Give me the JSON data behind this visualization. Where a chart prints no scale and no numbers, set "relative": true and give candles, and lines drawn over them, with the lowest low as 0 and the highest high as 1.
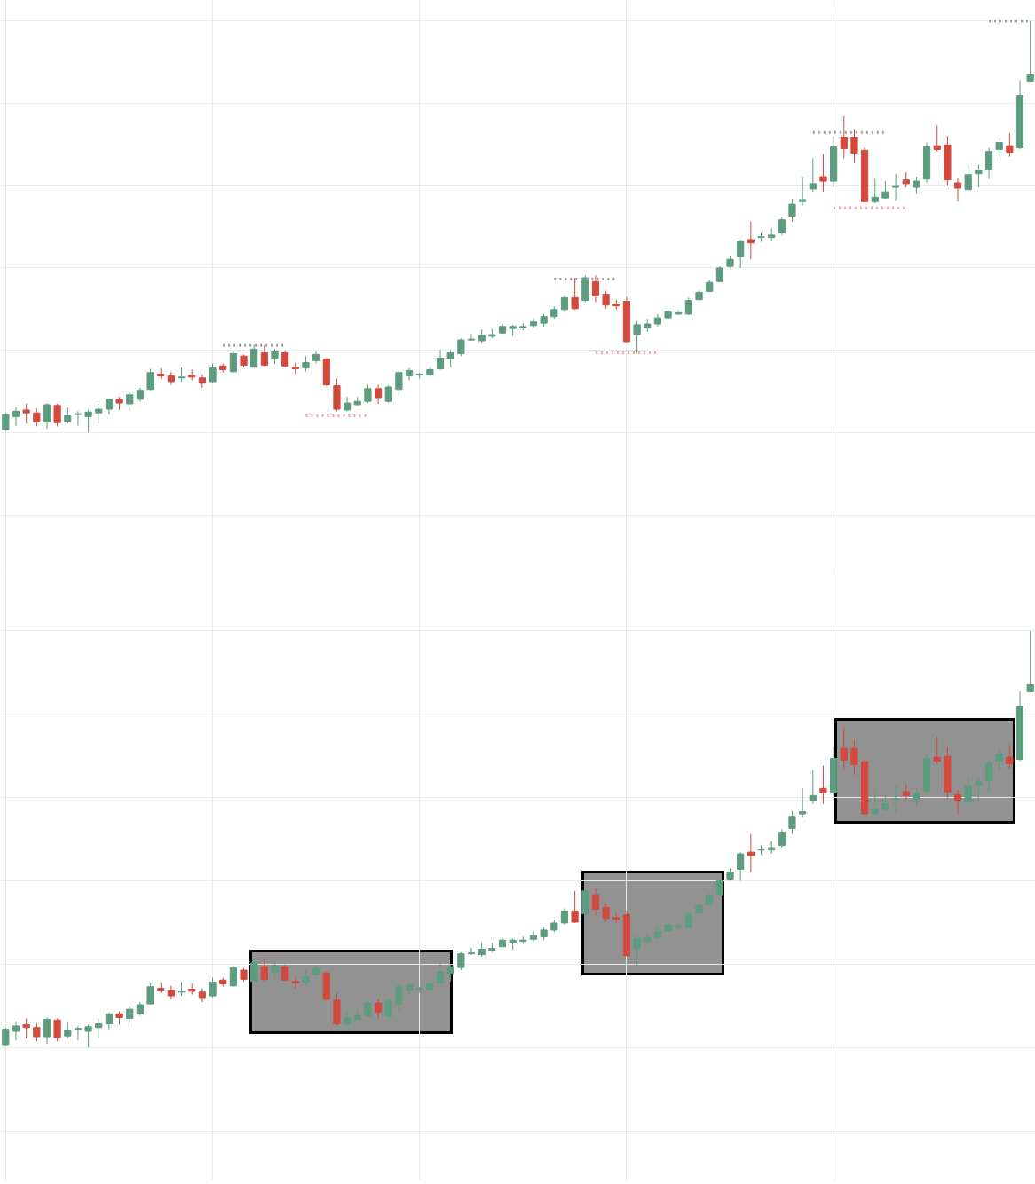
{
  "chart_data": [
    {
      "type": "candlestick",
      "relative": true,
      "grid": true,
      "line_style": "dotted",
      "categories": [
        null,
        null,
        null,
        null,
        null,
        null,
        null,
        null,
        null,
        null,
        null,
        null,
        null,
        null,
        null,
        null,
        null,
        null,
        null,
        null,
        null,
        null,
        null,
        null,
        null,
        null,
        null,
        null,
        null,
        null,
        null,
        null,
        null,
        null,
        null,
        null,
        null,
        null,
        null,
        null,
        null,
        null,
        null,
        null,
        null,
        null,
        null,
        null,
        null,
        null,
        null,
        null,
        null,
        null,
        null,
        null,
        null,
        null,
        null,
        null,
        null,
        null,
        null,
        null,
        null,
        null,
        null,
        null,
        null,
        null,
        null,
        null,
        null,
        null,
        null,
        null,
        null,
        null,
        null,
        null,
        null,
        null,
        null,
        null,
        null,
        null,
        null,
        null,
        null,
        null,
        null,
        null,
        null,
        null,
        null,
        null,
        null,
        null,
        null,
        null
      ],
      "ohlc": [
        [
          0.007,
          0.048,
          0.004,
          0.044
        ],
        [
          0.039,
          0.063,
          0.017,
          0.052
        ],
        [
          0.055,
          0.07,
          0.022,
          0.048
        ],
        [
          0.048,
          0.059,
          0.015,
          0.026
        ],
        [
          0.026,
          0.072,
          0.009,
          0.068
        ],
        [
          0.066,
          0.07,
          0.015,
          0.024
        ],
        [
          0.028,
          0.061,
          0.022,
          0.041
        ],
        [
          0.044,
          0.052,
          0.017,
          0.046
        ],
        [
          0.039,
          0.055,
          0.0,
          0.05
        ],
        [
          0.048,
          0.07,
          0.022,
          0.057
        ],
        [
          0.057,
          0.083,
          0.044,
          0.081
        ],
        [
          0.081,
          0.087,
          0.055,
          0.072
        ],
        [
          0.07,
          0.098,
          0.055,
          0.092
        ],
        [
          0.081,
          0.109,
          0.076,
          0.103
        ],
        [
          0.105,
          0.155,
          0.103,
          0.146
        ],
        [
          0.142,
          0.157,
          0.131,
          0.138
        ],
        [
          0.138,
          0.148,
          0.116,
          0.124
        ],
        [
          0.133,
          0.157,
          0.124,
          0.135
        ],
        [
          0.14,
          0.153,
          0.127,
          0.135
        ],
        [
          0.133,
          0.142,
          0.109,
          0.12
        ],
        [
          0.124,
          0.168,
          0.12,
          0.157
        ],
        [
          0.162,
          0.168,
          0.146,
          0.153
        ],
        [
          0.148,
          0.197,
          0.146,
          0.192
        ],
        [
          0.186,
          0.19,
          0.159,
          0.164
        ],
        [
          0.159,
          0.214,
          0.159,
          0.203
        ],
        [
          0.194,
          0.212,
          0.159,
          0.164
        ],
        [
          0.181,
          0.203,
          0.168,
          0.197
        ],
        [
          0.194,
          0.199,
          0.159,
          0.162
        ],
        [
          0.159,
          0.17,
          0.142,
          0.155
        ],
        [
          0.157,
          0.186,
          0.148,
          0.17
        ],
        [
          0.175,
          0.197,
          0.168,
          0.19
        ],
        [
          0.179,
          0.181,
          0.114,
          0.116
        ],
        [
          0.114,
          0.131,
          0.052,
          0.057
        ],
        [
          0.055,
          0.087,
          0.052,
          0.072
        ],
        [
          0.068,
          0.087,
          0.066,
          0.076
        ],
        [
          0.076,
          0.116,
          0.072,
          0.107
        ],
        [
          0.107,
          0.116,
          0.07,
          0.085
        ],
        [
          0.076,
          0.116,
          0.072,
          0.111
        ],
        [
          0.105,
          0.153,
          0.087,
          0.146
        ],
        [
          0.138,
          0.157,
          0.127,
          0.151
        ],
        [
          0.14,
          0.146,
          0.131,
          0.142
        ],
        [
          0.14,
          0.157,
          0.138,
          0.153
        ],
        [
          0.155,
          0.201,
          0.153,
          0.181
        ],
        [
          0.179,
          0.201,
          0.159,
          0.194
        ],
        [
          0.192,
          0.229,
          0.186,
          0.225
        ],
        [
          0.225,
          0.24,
          0.223,
          0.227
        ],
        [
          0.223,
          0.251,
          0.218,
          0.236
        ],
        [
          0.234,
          0.251,
          0.229,
          0.238
        ],
        [
          0.242,
          0.264,
          0.24,
          0.258
        ],
        [
          0.253,
          0.262,
          0.234,
          0.258
        ],
        [
          0.255,
          0.266,
          0.249,
          0.258
        ],
        [
          0.26,
          0.279,
          0.255,
          0.269
        ],
        [
          0.266,
          0.288,
          0.258,
          0.282
        ],
        [
          0.282,
          0.306,
          0.277,
          0.299
        ],
        [
          0.299,
          0.334,
          0.295,
          0.328
        ],
        [
          0.328,
          0.376,
          0.299,
          0.301
        ],
        [
          0.321,
          0.382,
          0.317,
          0.376
        ],
        [
          0.367,
          0.382,
          0.317,
          0.332
        ],
        [
          0.336,
          0.345,
          0.301,
          0.31
        ],
        [
          0.312,
          0.323,
          0.299,
          0.308
        ],
        [
          0.319,
          0.33,
          0.218,
          0.221
        ],
        [
          0.238,
          0.271,
          0.192,
          0.262
        ],
        [
          0.255,
          0.277,
          0.245,
          0.264
        ],
        [
          0.264,
          0.288,
          0.258,
          0.279
        ],
        [
          0.279,
          0.299,
          0.277,
          0.295
        ],
        [
          0.288,
          0.297,
          0.286,
          0.293
        ],
        [
          0.288,
          0.328,
          0.286,
          0.321
        ],
        [
          0.323,
          0.345,
          0.321,
          0.341
        ],
        [
          0.343,
          0.371,
          0.341,
          0.365
        ],
        [
          0.367,
          0.404,
          0.365,
          0.4
        ],
        [
          0.404,
          0.43,
          0.4,
          0.421
        ],
        [
          0.428,
          0.469,
          0.4,
          0.465
        ],
        [
          0.469,
          0.513,
          0.421,
          0.461
        ],
        [
          0.474,
          0.487,
          0.463,
          0.476
        ],
        [
          0.474,
          0.496,
          0.465,
          0.48
        ],
        [
          0.485,
          0.524,
          0.48,
          0.517
        ],
        [
          0.526,
          0.568,
          0.513,
          0.555
        ],
        [
          0.561,
          0.622,
          0.552,
          0.566
        ],
        [
          0.592,
          0.666,
          0.585,
          0.605
        ],
        [
          0.622,
          0.677,
          0.585,
          0.611
        ],
        [
          0.611,
          0.721,
          0.596,
          0.694
        ],
        [
          0.718,
          0.769,
          0.666,
          0.69
        ],
        [
          0.718,
          0.738,
          0.655,
          0.679
        ],
        [
          0.686,
          0.692,
          0.559,
          0.561
        ],
        [
          0.561,
          0.618,
          0.557,
          0.572
        ],
        [
          0.57,
          0.611,
          0.568,
          0.585
        ],
        [
          0.596,
          0.629,
          0.563,
          0.598
        ],
        [
          0.614,
          0.633,
          0.596,
          0.605
        ],
        [
          0.596,
          0.622,
          0.579,
          0.611
        ],
        [
          0.616,
          0.705,
          0.607,
          0.694
        ],
        [
          0.697,
          0.747,
          0.683,
          0.688
        ],
        [
          0.699,
          0.721,
          0.6,
          0.614
        ],
        [
          0.607,
          0.618,
          0.561,
          0.594
        ],
        [
          0.59,
          0.648,
          0.585,
          0.627
        ],
        [
          0.629,
          0.651,
          0.596,
          0.638
        ],
        [
          0.64,
          0.692,
          0.616,
          0.683
        ],
        [
          0.688,
          0.716,
          0.666,
          0.705
        ],
        [
          0.697,
          0.727,
          0.67,
          0.681
        ],
        [
          0.692,
          0.856,
          0.688,
          0.819
        ],
        [
          0.854,
          1.0,
          0.852,
          0.871
        ]
      ],
      "colors": [
        "#5d9c7f",
        "#5d9c7f",
        "#d24a3e",
        "#d24a3e",
        "#5d9c7f",
        "#d24a3e",
        "#5d9c7f",
        "#5d9c7f",
        "#5d9c7f",
        "#5d9c7f",
        "#5d9c7f",
        "#d24a3e",
        "#5d9c7f",
        "#5d9c7f",
        "#5d9c7f",
        "#d24a3e",
        "#d24a3e",
        "#5d9c7f",
        "#d24a3e",
        "#d24a3e",
        "#5d9c7f",
        "#d24a3e",
        "#5d9c7f",
        "#d24a3e",
        "#5d9c7f",
        "#d24a3e",
        "#5d9c7f",
        "#d24a3e",
        "#d24a3e",
        "#5d9c7f",
        "#5d9c7f",
        "#d24a3e",
        "#d24a3e",
        "#5d9c7f",
        "#5d9c7f",
        "#5d9c7f",
        "#d24a3e",
        "#5d9c7f",
        "#5d9c7f",
        "#5d9c7f",
        "#5d9c7f",
        "#5d9c7f",
        "#5d9c7f",
        "#5d9c7f",
        "#5d9c7f",
        "#5d9c7f",
        "#5d9c7f",
        "#5d9c7f",
        "#5d9c7f",
        "#5d9c7f",
        "#5d9c7f",
        "#5d9c7f",
        "#5d9c7f",
        "#5d9c7f",
        "#5d9c7f",
        "#d24a3e",
        "#5d9c7f",
        "#d24a3e",
        "#d24a3e",
        "#d24a3e",
        "#d24a3e",
        "#5d9c7f",
        "#5d9c7f",
        "#5d9c7f",
        "#5d9c7f",
        "#5d9c7f",
        "#5d9c7f",
        "#5d9c7f",
        "#5d9c7f",
        "#5d9c7f",
        "#5d9c7f",
        "#5d9c7f",
        "#d24a3e",
        "#5d9c7f",
        "#5d9c7f",
        "#5d9c7f",
        "#5d9c7f",
        "#5d9c7f",
        "#5d9c7f",
        "#d24a3e",
        "#5d9c7f",
        "#d24a3e",
        "#d24a3e",
        "#d24a3e",
        "#5d9c7f",
        "#5d9c7f",
        "#5d9c7f",
        "#d24a3e",
        "#5d9c7f",
        "#5d9c7f",
        "#d24a3e",
        "#d24a3e",
        "#d24a3e",
        "#5d9c7f",
        "#5d9c7f",
        "#5d9c7f",
        "#5d9c7f",
        "#d24a3e",
        "#5d9c7f",
        "#5d9c7f"
      ],
      "series": [
        {
          "type": "line",
          "color": "#9e9e9e",
          "values": [
            null,
            null,
            null,
            null,
            null,
            null,
            null,
            null,
            null,
            null,
            null,
            null,
            null,
            null,
            null,
            null,
            null,
            null,
            null,
            null,
            null,
            0.212,
            0.212,
            0.212,
            0.212,
            0.212,
            0.212,
            0.212,
            null,
            null,
            null,
            null,
            null,
            null,
            null,
            null,
            null,
            null,
            null,
            null,
            null,
            null,
            null,
            null,
            null,
            null,
            null,
            null,
            null,
            null,
            null,
            null,
            null,
            null,
            null,
            null,
            null,
            null,
            null,
            null,
            null,
            null,
            null,
            null,
            null,
            null,
            null,
            null,
            null,
            null,
            null,
            null,
            null,
            null,
            null,
            null,
            null,
            null,
            null,
            null,
            null,
            null,
            null,
            null,
            null,
            null,
            null,
            null,
            null,
            null,
            null,
            null,
            null,
            null,
            null,
            null,
            null,
            null,
            null,
            null
          ]
        },
        {
          "type": "line",
          "color": "#f4a3ad",
          "values": [
            null,
            null,
            null,
            null,
            null,
            null,
            null,
            null,
            null,
            null,
            null,
            null,
            null,
            null,
            null,
            null,
            null,
            null,
            null,
            null,
            null,
            null,
            null,
            null,
            null,
            null,
            null,
            null,
            null,
            0.041,
            0.041,
            0.041,
            0.041,
            0.041,
            0.041,
            0.041,
            null,
            null,
            null,
            null,
            null,
            null,
            null,
            null,
            null,
            null,
            null,
            null,
            null,
            null,
            null,
            null,
            null,
            null,
            null,
            null,
            null,
            null,
            null,
            null,
            null,
            null,
            null,
            null,
            null,
            null,
            null,
            null,
            null,
            null,
            null,
            null,
            null,
            null,
            null,
            null,
            null,
            null,
            null,
            null,
            null,
            null,
            null,
            null,
            null,
            null,
            null,
            null,
            null,
            null,
            null,
            null,
            null,
            null,
            null,
            null,
            null,
            null,
            null,
            null
          ]
        },
        {
          "type": "line",
          "color": "#9e9e9e",
          "values": [
            null,
            null,
            null,
            null,
            null,
            null,
            null,
            null,
            null,
            null,
            null,
            null,
            null,
            null,
            null,
            null,
            null,
            null,
            null,
            null,
            null,
            null,
            null,
            null,
            null,
            null,
            null,
            null,
            null,
            null,
            null,
            null,
            null,
            null,
            null,
            null,
            null,
            null,
            null,
            null,
            null,
            null,
            null,
            null,
            null,
            null,
            null,
            null,
            null,
            null,
            null,
            null,
            null,
            0.373,
            0.373,
            0.373,
            0.373,
            0.373,
            0.373,
            0.373,
            null,
            null,
            null,
            null,
            null,
            null,
            null,
            null,
            null,
            null,
            null,
            null,
            null,
            null,
            null,
            null,
            null,
            null,
            null,
            null,
            null,
            null,
            null,
            null,
            null,
            null,
            null,
            null,
            null,
            null,
            null,
            null,
            null,
            null,
            null,
            null,
            null,
            null,
            null,
            null
          ]
        },
        {
          "type": "line",
          "color": "#f4a3ad",
          "values": [
            null,
            null,
            null,
            null,
            null,
            null,
            null,
            null,
            null,
            null,
            null,
            null,
            null,
            null,
            null,
            null,
            null,
            null,
            null,
            null,
            null,
            null,
            null,
            null,
            null,
            null,
            null,
            null,
            null,
            null,
            null,
            null,
            null,
            null,
            null,
            null,
            null,
            null,
            null,
            null,
            null,
            null,
            null,
            null,
            null,
            null,
            null,
            null,
            null,
            null,
            null,
            null,
            null,
            null,
            null,
            null,
            null,
            0.194,
            0.194,
            0.194,
            0.194,
            0.194,
            0.194,
            0.194,
            null,
            null,
            null,
            null,
            null,
            null,
            null,
            null,
            null,
            null,
            null,
            null,
            null,
            null,
            null,
            null,
            null,
            null,
            null,
            null,
            null,
            null,
            null,
            null,
            null,
            null,
            null,
            null,
            null,
            null,
            null,
            null,
            null,
            null,
            null,
            null
          ]
        },
        {
          "type": "line",
          "color": "#9e9e9e",
          "values": [
            null,
            null,
            null,
            null,
            null,
            null,
            null,
            null,
            null,
            null,
            null,
            null,
            null,
            null,
            null,
            null,
            null,
            null,
            null,
            null,
            null,
            null,
            null,
            null,
            null,
            null,
            null,
            null,
            null,
            null,
            null,
            null,
            null,
            null,
            null,
            null,
            null,
            null,
            null,
            null,
            null,
            null,
            null,
            null,
            null,
            null,
            null,
            null,
            null,
            null,
            null,
            null,
            null,
            null,
            null,
            null,
            null,
            null,
            null,
            null,
            null,
            null,
            null,
            null,
            null,
            null,
            null,
            null,
            null,
            null,
            null,
            null,
            null,
            null,
            null,
            null,
            null,
            null,
            0.729,
            0.729,
            0.729,
            0.729,
            0.729,
            0.729,
            0.729,
            0.729,
            null,
            null,
            null,
            null,
            null,
            null,
            null,
            null,
            null,
            null,
            null,
            null,
            null,
            null
          ]
        },
        {
          "type": "line",
          "color": "#f4a3ad",
          "values": [
            null,
            null,
            null,
            null,
            null,
            null,
            null,
            null,
            null,
            null,
            null,
            null,
            null,
            null,
            null,
            null,
            null,
            null,
            null,
            null,
            null,
            null,
            null,
            null,
            null,
            null,
            null,
            null,
            null,
            null,
            null,
            null,
            null,
            null,
            null,
            null,
            null,
            null,
            null,
            null,
            null,
            null,
            null,
            null,
            null,
            null,
            null,
            null,
            null,
            null,
            null,
            null,
            null,
            null,
            null,
            null,
            null,
            null,
            null,
            null,
            null,
            null,
            null,
            null,
            null,
            null,
            null,
            null,
            null,
            null,
            null,
            null,
            null,
            null,
            null,
            null,
            null,
            null,
            null,
            null,
            0.546,
            0.546,
            0.546,
            0.546,
            0.546,
            0.546,
            0.546,
            0.546,
            null,
            null,
            null,
            null,
            null,
            null,
            null,
            null,
            null,
            null,
            null,
            null
          ]
        },
        {
          "type": "line",
          "color": "#9e9e9e",
          "values": [
            null,
            null,
            null,
            null,
            null,
            null,
            null,
            null,
            null,
            null,
            null,
            null,
            null,
            null,
            null,
            null,
            null,
            null,
            null,
            null,
            null,
            null,
            null,
            null,
            null,
            null,
            null,
            null,
            null,
            null,
            null,
            null,
            null,
            null,
            null,
            null,
            null,
            null,
            null,
            null,
            null,
            null,
            null,
            null,
            null,
            null,
            null,
            null,
            null,
            null,
            null,
            null,
            null,
            null,
            null,
            null,
            null,
            null,
            null,
            null,
            null,
            null,
            null,
            null,
            null,
            null,
            null,
            null,
            null,
            null,
            null,
            null,
            null,
            null,
            null,
            null,
            null,
            null,
            null,
            null,
            null,
            null,
            null,
            null,
            null,
            null,
            null,
            null,
            null,
            null,
            null,
            null,
            null,
            null,
            null,
            1.0,
            1.0,
            1.0,
            1.0,
            1.0
          ]
        }
      ]
    },
    {
      "type": "candlestick",
      "relative": true,
      "grid": true,
      "categories": [
        null,
        null,
        null,
        null,
        null,
        null,
        null,
        null,
        null,
        null,
        null,
        null,
        null,
        null,
        null,
        null,
        null,
        null,
        null,
        null,
        null,
        null,
        null,
        null,
        null,
        null,
        null,
        null,
        null,
        null,
        null,
        null,
        null,
        null,
        null,
        null,
        null,
        null,
        null,
        null,
        null,
        null,
        null,
        null,
        null,
        null,
        null,
        null,
        null,
        null,
        null,
        null,
        null,
        null,
        null,
        null,
        null,
        null,
        null,
        null,
        null,
        null,
        null,
        null,
        null,
        null,
        null,
        null,
        null,
        null,
        null,
        null,
        null,
        null,
        null,
        null,
        null,
        null,
        null,
        null,
        null,
        null,
        null,
        null,
        null,
        null,
        null,
        null,
        null,
        null,
        null,
        null,
        null,
        null,
        null,
        null,
        null,
        null,
        null,
        null
      ],
      "ohlc": [
        [
          0.007,
          0.048,
          0.004,
          0.044
        ],
        [
          0.039,
          0.063,
          0.017,
          0.052
        ],
        [
          0.055,
          0.07,
          0.022,
          0.048
        ],
        [
          0.048,
          0.059,
          0.015,
          0.026
        ],
        [
          0.026,
          0.072,
          0.009,
          0.068
        ],
        [
          0.066,
          0.07,
          0.015,
          0.024
        ],
        [
          0.028,
          0.061,
          0.022,
          0.041
        ],
        [
          0.044,
          0.052,
          0.017,
          0.046
        ],
        [
          0.039,
          0.055,
          0.0,
          0.05
        ],
        [
          0.048,
          0.07,
          0.022,
          0.057
        ],
        [
          0.057,
          0.083,
          0.044,
          0.081
        ],
        [
          0.081,
          0.087,
          0.055,
          0.072
        ],
        [
          0.07,
          0.098,
          0.055,
          0.092
        ],
        [
          0.081,
          0.109,
          0.076,
          0.103
        ],
        [
          0.105,
          0.155,
          0.103,
          0.146
        ],
        [
          0.142,
          0.157,
          0.131,
          0.138
        ],
        [
          0.138,
          0.148,
          0.116,
          0.124
        ],
        [
          0.133,
          0.157,
          0.124,
          0.135
        ],
        [
          0.14,
          0.153,
          0.127,
          0.135
        ],
        [
          0.133,
          0.142,
          0.109,
          0.12
        ],
        [
          0.124,
          0.168,
          0.12,
          0.157
        ],
        [
          0.162,
          0.168,
          0.146,
          0.153
        ],
        [
          0.148,
          0.197,
          0.146,
          0.192
        ],
        [
          0.186,
          0.19,
          0.159,
          0.164
        ],
        [
          0.159,
          0.214,
          0.159,
          0.203
        ],
        [
          0.194,
          0.212,
          0.159,
          0.164
        ],
        [
          0.181,
          0.203,
          0.168,
          0.197
        ],
        [
          0.194,
          0.199,
          0.159,
          0.162
        ],
        [
          0.159,
          0.17,
          0.142,
          0.155
        ],
        [
          0.157,
          0.186,
          0.148,
          0.17
        ],
        [
          0.175,
          0.197,
          0.168,
          0.19
        ],
        [
          0.179,
          0.181,
          0.114,
          0.116
        ],
        [
          0.114,
          0.131,
          0.052,
          0.057
        ],
        [
          0.055,
          0.087,
          0.052,
          0.072
        ],
        [
          0.068,
          0.087,
          0.066,
          0.076
        ],
        [
          0.076,
          0.116,
          0.072,
          0.107
        ],
        [
          0.107,
          0.116,
          0.07,
          0.085
        ],
        [
          0.076,
          0.116,
          0.072,
          0.111
        ],
        [
          0.105,
          0.153,
          0.087,
          0.146
        ],
        [
          0.138,
          0.157,
          0.127,
          0.151
        ],
        [
          0.14,
          0.146,
          0.131,
          0.142
        ],
        [
          0.14,
          0.157,
          0.138,
          0.153
        ],
        [
          0.155,
          0.201,
          0.153,
          0.181
        ],
        [
          0.179,
          0.201,
          0.159,
          0.194
        ],
        [
          0.192,
          0.229,
          0.186,
          0.225
        ],
        [
          0.225,
          0.24,
          0.223,
          0.227
        ],
        [
          0.223,
          0.251,
          0.218,
          0.236
        ],
        [
          0.234,
          0.251,
          0.229,
          0.238
        ],
        [
          0.242,
          0.264,
          0.24,
          0.258
        ],
        [
          0.253,
          0.262,
          0.234,
          0.258
        ],
        [
          0.255,
          0.266,
          0.249,
          0.258
        ],
        [
          0.26,
          0.279,
          0.255,
          0.269
        ],
        [
          0.266,
          0.288,
          0.258,
          0.282
        ],
        [
          0.282,
          0.306,
          0.277,
          0.299
        ],
        [
          0.299,
          0.334,
          0.295,
          0.328
        ],
        [
          0.328,
          0.376,
          0.299,
          0.301
        ],
        [
          0.321,
          0.382,
          0.317,
          0.376
        ],
        [
          0.367,
          0.382,
          0.317,
          0.332
        ],
        [
          0.336,
          0.345,
          0.301,
          0.31
        ],
        [
          0.312,
          0.323,
          0.299,
          0.308
        ],
        [
          0.319,
          0.33,
          0.218,
          0.221
        ],
        [
          0.238,
          0.271,
          0.192,
          0.262
        ],
        [
          0.255,
          0.277,
          0.245,
          0.264
        ],
        [
          0.264,
          0.288,
          0.258,
          0.279
        ],
        [
          0.279,
          0.299,
          0.277,
          0.295
        ],
        [
          0.288,
          0.297,
          0.286,
          0.293
        ],
        [
          0.288,
          0.328,
          0.286,
          0.321
        ],
        [
          0.323,
          0.345,
          0.321,
          0.341
        ],
        [
          0.343,
          0.371,
          0.341,
          0.365
        ],
        [
          0.367,
          0.404,
          0.365,
          0.4
        ],
        [
          0.404,
          0.43,
          0.4,
          0.421
        ],
        [
          0.428,
          0.469,
          0.4,
          0.465
        ],
        [
          0.469,
          0.513,
          0.421,
          0.461
        ],
        [
          0.474,
          0.487,
          0.463,
          0.476
        ],
        [
          0.474,
          0.496,
          0.465,
          0.48
        ],
        [
          0.485,
          0.524,
          0.48,
          0.517
        ],
        [
          0.526,
          0.568,
          0.513,
          0.555
        ],
        [
          0.561,
          0.622,
          0.552,
          0.566
        ],
        [
          0.592,
          0.666,
          0.585,
          0.605
        ],
        [
          0.622,
          0.677,
          0.585,
          0.611
        ],
        [
          0.611,
          0.721,
          0.596,
          0.694
        ],
        [
          0.718,
          0.769,
          0.666,
          0.69
        ],
        [
          0.718,
          0.738,
          0.655,
          0.679
        ],
        [
          0.686,
          0.692,
          0.559,
          0.561
        ],
        [
          0.561,
          0.618,
          0.557,
          0.572
        ],
        [
          0.57,
          0.611,
          0.568,
          0.585
        ],
        [
          0.596,
          0.629,
          0.563,
          0.598
        ],
        [
          0.614,
          0.633,
          0.596,
          0.605
        ],
        [
          0.596,
          0.622,
          0.579,
          0.611
        ],
        [
          0.616,
          0.705,
          0.607,
          0.694
        ],
        [
          0.697,
          0.747,
          0.683,
          0.688
        ],
        [
          0.699,
          0.721,
          0.6,
          0.614
        ],
        [
          0.607,
          0.618,
          0.561,
          0.594
        ],
        [
          0.59,
          0.648,
          0.585,
          0.627
        ],
        [
          0.629,
          0.651,
          0.596,
          0.638
        ],
        [
          0.64,
          0.692,
          0.616,
          0.683
        ],
        [
          0.688,
          0.716,
          0.666,
          0.705
        ],
        [
          0.697,
          0.727,
          0.67,
          0.681
        ],
        [
          0.692,
          0.856,
          0.688,
          0.819
        ],
        [
          0.854,
          1.0,
          0.852,
          0.871
        ]
      ],
      "colors": [
        "#5d9c7f",
        "#5d9c7f",
        "#d24a3e",
        "#d24a3e",
        "#5d9c7f",
        "#d24a3e",
        "#5d9c7f",
        "#5d9c7f",
        "#5d9c7f",
        "#5d9c7f",
        "#5d9c7f",
        "#d24a3e",
        "#5d9c7f",
        "#5d9c7f",
        "#5d9c7f",
        "#d24a3e",
        "#d24a3e",
        "#5d9c7f",
        "#d24a3e",
        "#d24a3e",
        "#5d9c7f",
        "#d24a3e",
        "#5d9c7f",
        "#d24a3e",
        "#5d9c7f",
        "#d24a3e",
        "#5d9c7f",
        "#d24a3e",
        "#d24a3e",
        "#5d9c7f",
        "#5d9c7f",
        "#d24a3e",
        "#d24a3e",
        "#5d9c7f",
        "#5d9c7f",
        "#5d9c7f",
        "#d24a3e",
        "#5d9c7f",
        "#5d9c7f",
        "#5d9c7f",
        "#5d9c7f",
        "#5d9c7f",
        "#5d9c7f",
        "#5d9c7f",
        "#5d9c7f",
        "#5d9c7f",
        "#5d9c7f",
        "#5d9c7f",
        "#5d9c7f",
        "#5d9c7f",
        "#5d9c7f",
        "#5d9c7f",
        "#5d9c7f",
        "#5d9c7f",
        "#5d9c7f",
        "#d24a3e",
        "#5d9c7f",
        "#d24a3e",
        "#d24a3e",
        "#d24a3e",
        "#d24a3e",
        "#5d9c7f",
        "#5d9c7f",
        "#5d9c7f",
        "#5d9c7f",
        "#5d9c7f",
        "#5d9c7f",
        "#5d9c7f",
        "#5d9c7f",
        "#5d9c7f",
        "#5d9c7f",
        "#5d9c7f",
        "#d24a3e",
        "#5d9c7f",
        "#5d9c7f",
        "#5d9c7f",
        "#5d9c7f",
        "#5d9c7f",
        "#5d9c7f",
        "#d24a3e",
        "#5d9c7f",
        "#d24a3e",
        "#d24a3e",
        "#d24a3e",
        "#5d9c7f",
        "#5d9c7f",
        "#5d9c7f",
        "#d24a3e",
        "#5d9c7f",
        "#5d9c7f",
        "#d24a3e",
        "#d24a3e",
        "#d24a3e",
        "#5d9c7f",
        "#5d9c7f",
        "#5d9c7f",
        "#5d9c7f",
        "#d24a3e",
        "#5d9c7f",
        "#5d9c7f"
      ]
    }
  ]
}
